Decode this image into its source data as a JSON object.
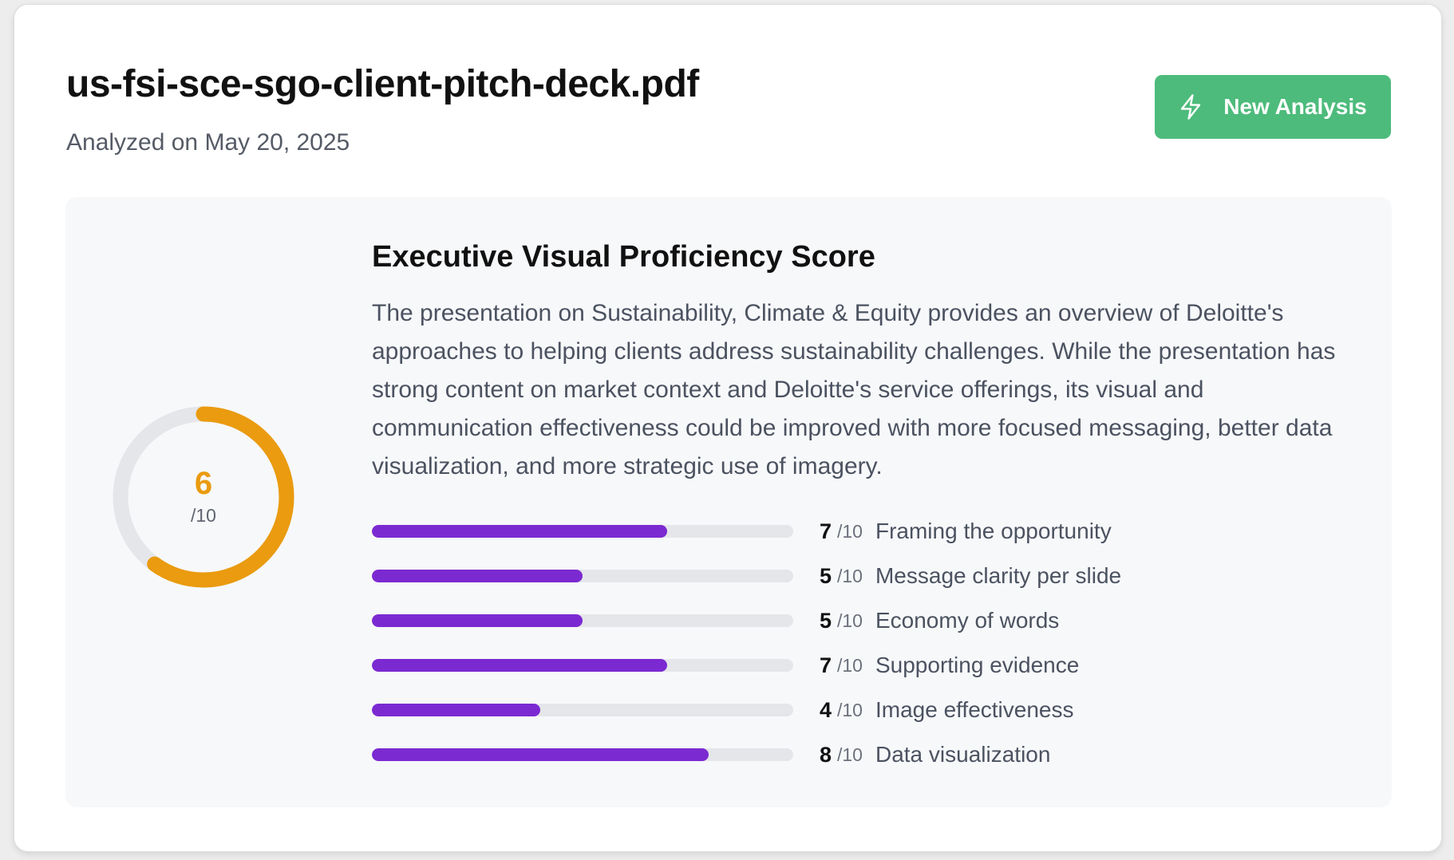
{
  "header": {
    "file_title": "us-fsi-sce-sgo-client-pitch-deck.pdf",
    "analyzed_date": "Analyzed on May 20, 2025",
    "new_analysis_label": "New Analysis",
    "new_analysis_icon": "lightning-bolt-icon"
  },
  "overall": {
    "score": 6,
    "score_text": "6",
    "max_text": "/10",
    "max": 10,
    "ring_color": "#ea9b0f",
    "track_color": "#e5e6ea"
  },
  "section": {
    "heading": "Executive Visual Proficiency Score",
    "summary": "The presentation on Sustainability, Climate & Equity provides an overview of Deloitte's approaches to helping clients address sustainability challenges. While the presentation has strong content on market context and Deloitte's service offerings, its visual and communication effectiveness could be improved with more focused messaging, better data visualization, and more strategic use of imagery."
  },
  "criteria": [
    {
      "score": 7,
      "score_text": "7",
      "max_text": "/10",
      "label": "Framing the opportunity"
    },
    {
      "score": 5,
      "score_text": "5",
      "max_text": "/10",
      "label": "Message clarity per slide"
    },
    {
      "score": 5,
      "score_text": "5",
      "max_text": "/10",
      "label": "Economy of words"
    },
    {
      "score": 7,
      "score_text": "7",
      "max_text": "/10",
      "label": "Supporting evidence"
    },
    {
      "score": 4,
      "score_text": "4",
      "max_text": "/10",
      "label": "Image effectiveness"
    },
    {
      "score": 8,
      "score_text": "8",
      "max_text": "/10",
      "label": "Data visualization"
    }
  ],
  "colors": {
    "accent_button": "#4dbb7b",
    "bar_fill": "#7b2ad1",
    "bar_track": "#e5e6ea",
    "panel_bg": "#f7f8fa"
  }
}
